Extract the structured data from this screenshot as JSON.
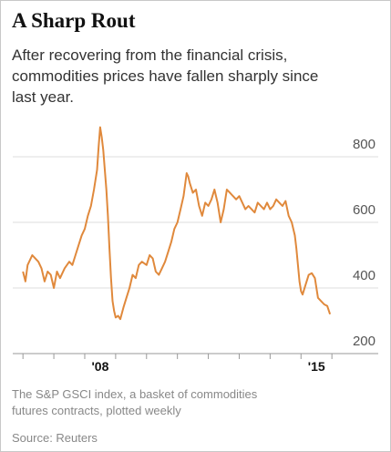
{
  "chart_data": {
    "type": "line",
    "title": "A Sharp Rout",
    "subtitle": [
      "After recovering from the financial crisis,",
      "commodities prices have fallen sharply since",
      "last year."
    ],
    "notes": [
      "The S&P GSCI index, a basket of commodities",
      "futures contracts, plotted weekly"
    ],
    "source": "Source: Reuters",
    "color": "#e0893c",
    "x": [
      2006.0,
      2006.08,
      2006.15,
      2006.3,
      2006.4,
      2006.5,
      2006.6,
      2006.7,
      2006.8,
      2006.9,
      2007.0,
      2007.1,
      2007.2,
      2007.35,
      2007.5,
      2007.6,
      2007.7,
      2007.8,
      2007.9,
      2008.0,
      2008.1,
      2008.2,
      2008.3,
      2008.4,
      2008.45,
      2008.5,
      2008.55,
      2008.6,
      2008.65,
      2008.7,
      2008.75,
      2008.8,
      2008.85,
      2008.9,
      2008.95,
      2009.0,
      2009.08,
      2009.15,
      2009.25,
      2009.35,
      2009.45,
      2009.55,
      2009.65,
      2009.75,
      2009.85,
      2010.0,
      2010.1,
      2010.2,
      2010.3,
      2010.4,
      2010.5,
      2010.6,
      2010.7,
      2010.8,
      2010.9,
      2011.0,
      2011.1,
      2011.2,
      2011.3,
      2011.35,
      2011.4,
      2011.5,
      2011.6,
      2011.7,
      2011.8,
      2011.9,
      2012.0,
      2012.1,
      2012.2,
      2012.3,
      2012.4,
      2012.5,
      2012.6,
      2012.7,
      2012.8,
      2012.9,
      2013.0,
      2013.1,
      2013.2,
      2013.3,
      2013.4,
      2013.5,
      2013.6,
      2013.7,
      2013.8,
      2013.9,
      2014.0,
      2014.1,
      2014.2,
      2014.3,
      2014.4,
      2014.5,
      2014.6,
      2014.7,
      2014.8,
      2014.85,
      2014.9,
      2014.95,
      2015.0,
      2015.05,
      2015.15,
      2015.25,
      2015.35,
      2015.45,
      2015.5,
      2015.55,
      2015.65,
      2015.75,
      2015.85,
      2015.94
    ],
    "values": [
      450,
      420,
      470,
      500,
      490,
      480,
      460,
      420,
      450,
      440,
      400,
      450,
      430,
      460,
      480,
      470,
      500,
      530,
      560,
      580,
      620,
      650,
      700,
      760,
      830,
      890,
      860,
      820,
      760,
      700,
      620,
      520,
      430,
      360,
      330,
      310,
      315,
      305,
      340,
      370,
      400,
      440,
      430,
      470,
      480,
      470,
      500,
      490,
      450,
      440,
      460,
      480,
      510,
      540,
      580,
      600,
      640,
      680,
      750,
      740,
      720,
      690,
      700,
      650,
      620,
      660,
      650,
      670,
      700,
      660,
      600,
      640,
      700,
      690,
      680,
      670,
      680,
      660,
      640,
      650,
      640,
      630,
      660,
      650,
      640,
      660,
      640,
      650,
      670,
      660,
      650,
      665,
      620,
      600,
      560,
      520,
      470,
      420,
      390,
      380,
      410,
      440,
      445,
      430,
      400,
      370,
      360,
      350,
      345,
      320
    ],
    "ylim": [
      200,
      900
    ],
    "yticks": [
      200,
      400,
      600,
      800
    ],
    "xlim": [
      2005.67,
      2017.5
    ],
    "xticks": [
      2006,
      2007,
      2008,
      2009,
      2010,
      2011,
      2012,
      2013,
      2014,
      2015,
      2016
    ],
    "xtick_labels": [
      {
        "value": 2008.5,
        "label": "'08"
      },
      {
        "value": 2015.5,
        "label": "'15"
      }
    ],
    "grid": true
  }
}
